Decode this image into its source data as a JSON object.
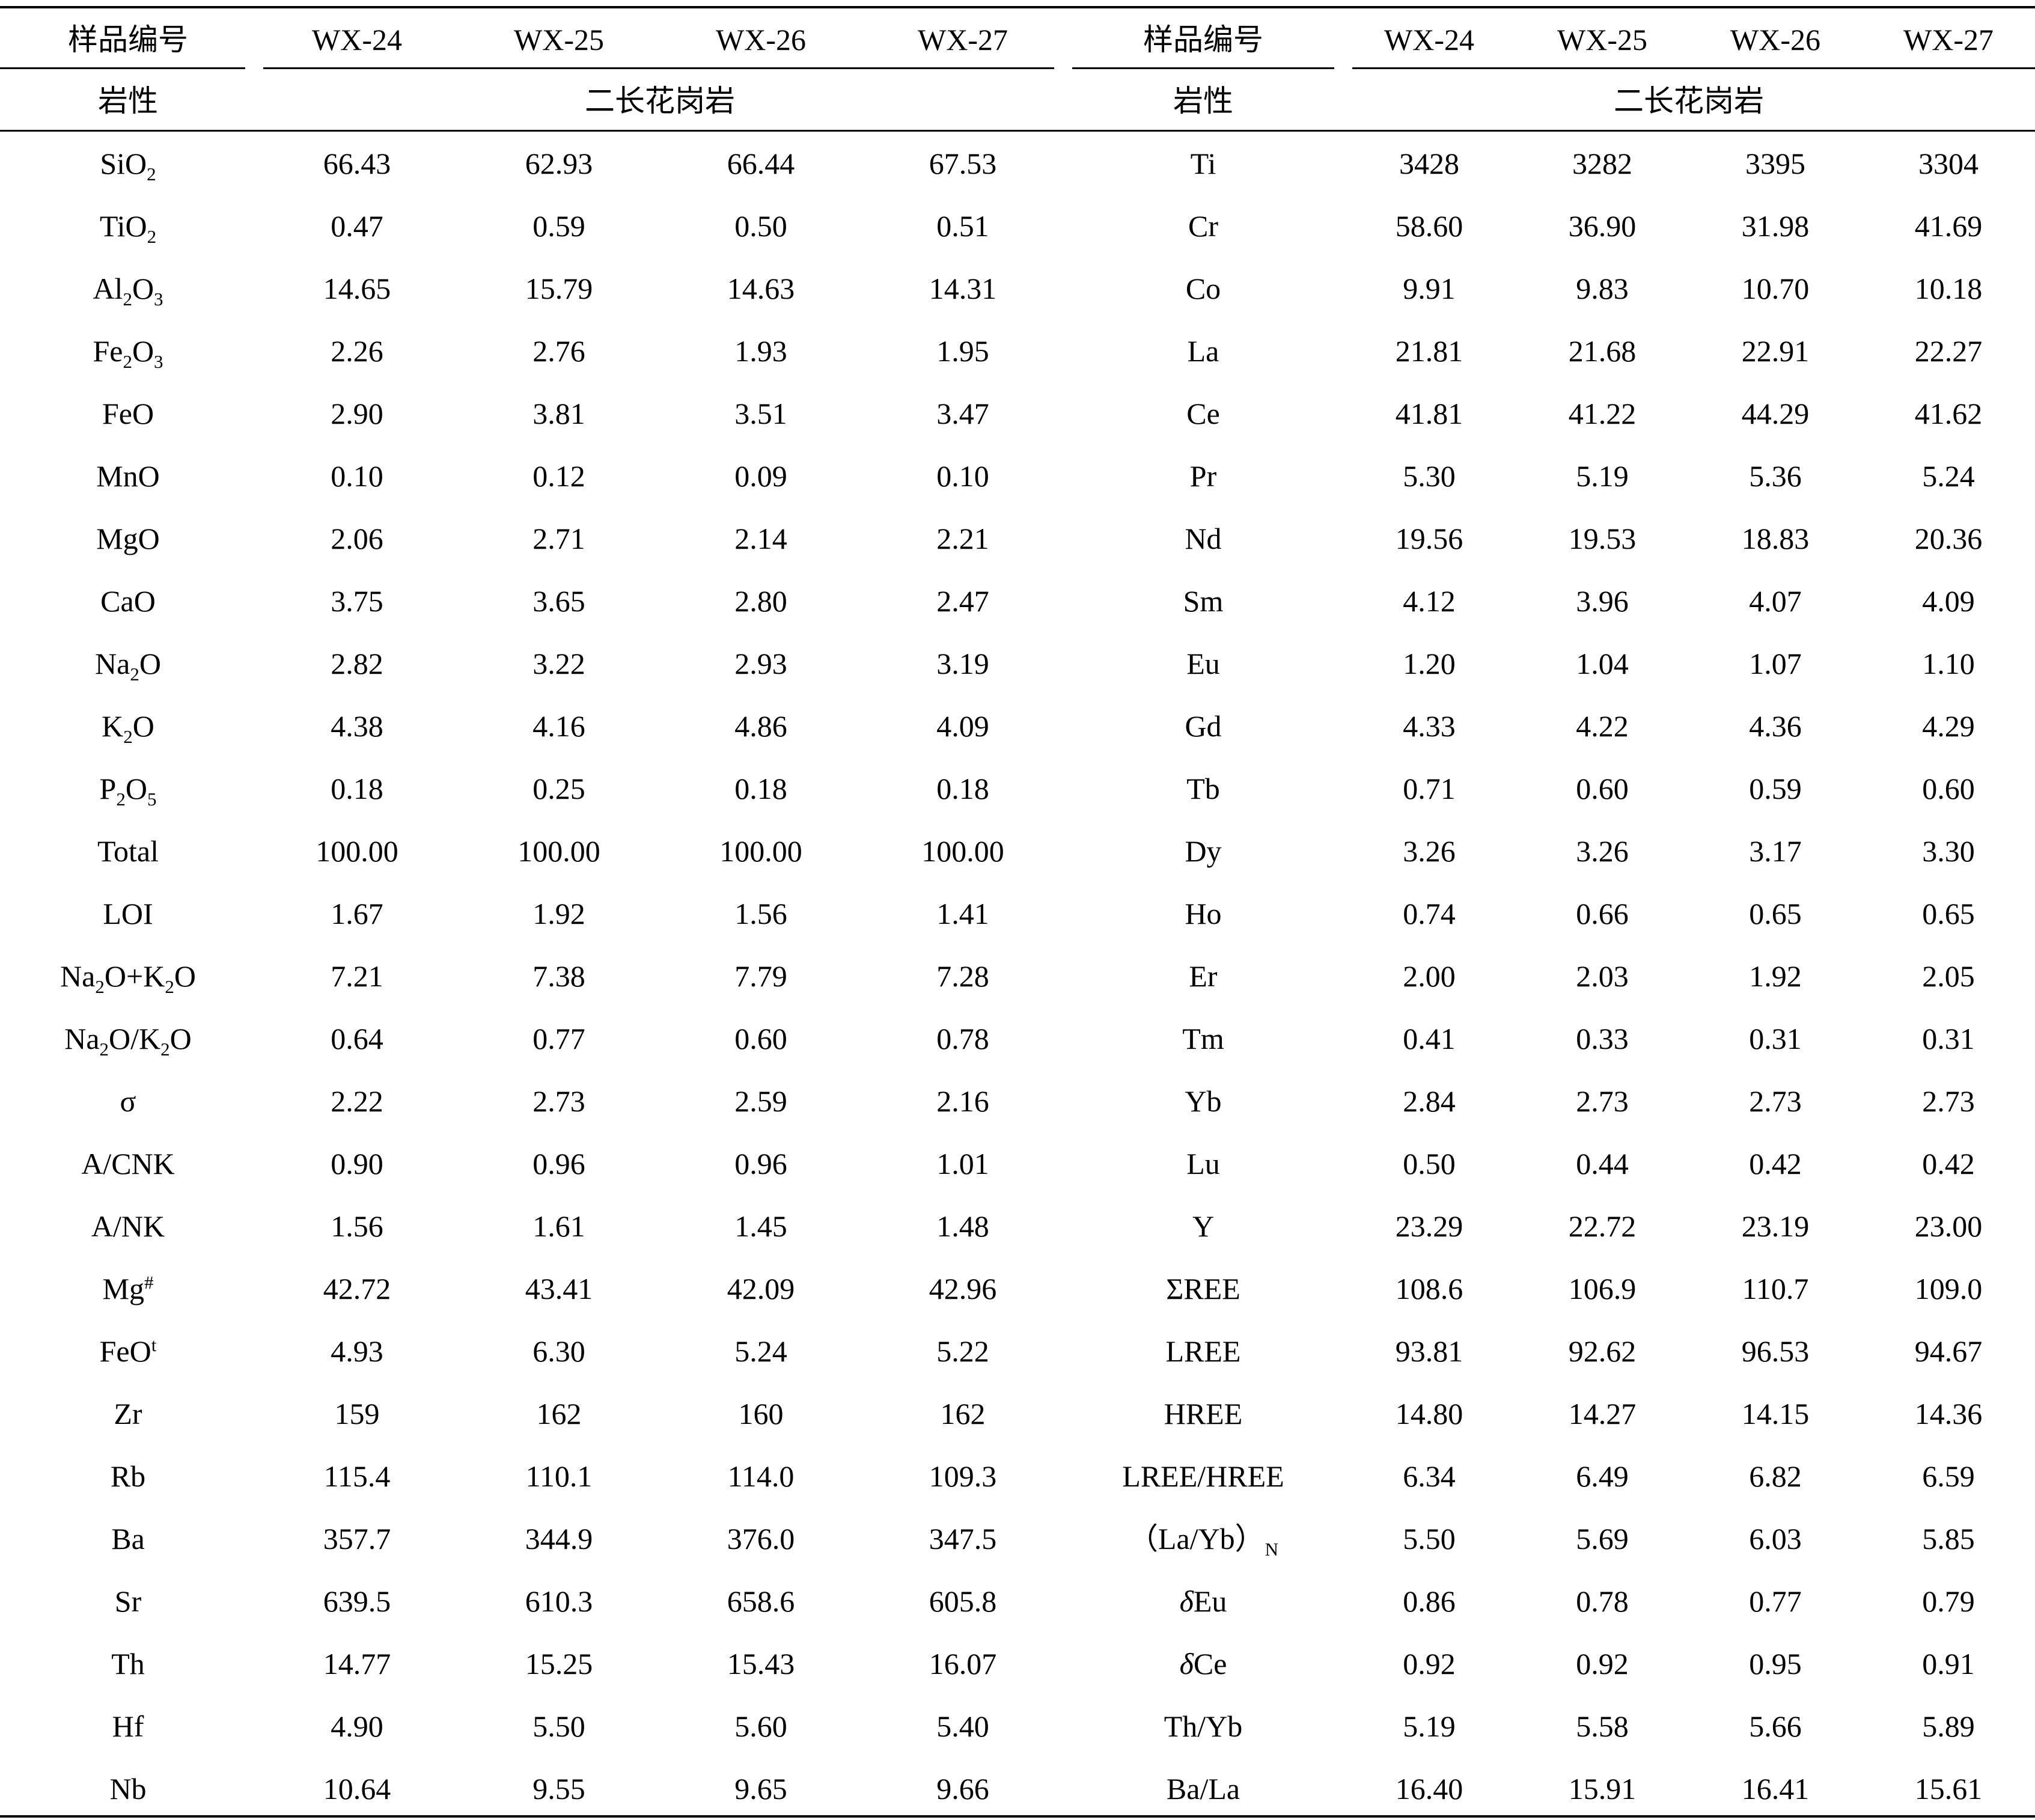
{
  "header": {
    "sample_label": "样品编号",
    "samples": [
      "WX-24",
      "WX-25",
      "WX-26",
      "WX-27"
    ],
    "lithology_label": "岩性",
    "lithology_value": "二长花岗岩"
  },
  "left_rows": [
    {
      "label_html": "SiO<sub>2</sub>",
      "values": [
        "66.43",
        "62.93",
        "66.44",
        "67.53"
      ]
    },
    {
      "label_html": "TiO<sub>2</sub>",
      "values": [
        "0.47",
        "0.59",
        "0.50",
        "0.51"
      ]
    },
    {
      "label_html": "Al<sub>2</sub>O<sub>3</sub>",
      "values": [
        "14.65",
        "15.79",
        "14.63",
        "14.31"
      ]
    },
    {
      "label_html": "Fe<sub>2</sub>O<sub>3</sub>",
      "values": [
        "2.26",
        "2.76",
        "1.93",
        "1.95"
      ]
    },
    {
      "label_html": "FeO",
      "values": [
        "2.90",
        "3.81",
        "3.51",
        "3.47"
      ]
    },
    {
      "label_html": "MnO",
      "values": [
        "0.10",
        "0.12",
        "0.09",
        "0.10"
      ]
    },
    {
      "label_html": "MgO",
      "values": [
        "2.06",
        "2.71",
        "2.14",
        "2.21"
      ]
    },
    {
      "label_html": "CaO",
      "values": [
        "3.75",
        "3.65",
        "2.80",
        "2.47"
      ]
    },
    {
      "label_html": "Na<sub>2</sub>O",
      "values": [
        "2.82",
        "3.22",
        "2.93",
        "3.19"
      ]
    },
    {
      "label_html": "K<sub>2</sub>O",
      "values": [
        "4.38",
        "4.16",
        "4.86",
        "4.09"
      ]
    },
    {
      "label_html": "P<sub>2</sub>O<sub>5</sub>",
      "values": [
        "0.18",
        "0.25",
        "0.18",
        "0.18"
      ]
    },
    {
      "label_html": "Total",
      "values": [
        "100.00",
        "100.00",
        "100.00",
        "100.00"
      ]
    },
    {
      "label_html": "LOI",
      "values": [
        "1.67",
        "1.92",
        "1.56",
        "1.41"
      ]
    },
    {
      "label_html": "Na<sub>2</sub>O+K<sub>2</sub>O",
      "values": [
        "7.21",
        "7.38",
        "7.79",
        "7.28"
      ]
    },
    {
      "label_html": "Na<sub>2</sub>O/K<sub>2</sub>O",
      "values": [
        "0.64",
        "0.77",
        "0.60",
        "0.78"
      ]
    },
    {
      "label_html": "σ",
      "values": [
        "2.22",
        "2.73",
        "2.59",
        "2.16"
      ]
    },
    {
      "label_html": "A/CNK",
      "values": [
        "0.90",
        "0.96",
        "0.96",
        "1.01"
      ]
    },
    {
      "label_html": "A/NK",
      "values": [
        "1.56",
        "1.61",
        "1.45",
        "1.48"
      ]
    },
    {
      "label_html": "Mg<sup>#</sup>",
      "values": [
        "42.72",
        "43.41",
        "42.09",
        "42.96"
      ]
    },
    {
      "label_html": "FeO<sup>t</sup>",
      "values": [
        "4.93",
        "6.30",
        "5.24",
        "5.22"
      ]
    },
    {
      "label_html": "Zr",
      "values": [
        "159",
        "162",
        "160",
        "162"
      ]
    },
    {
      "label_html": "Rb",
      "values": [
        "115.4",
        "110.1",
        "114.0",
        "109.3"
      ]
    },
    {
      "label_html": "Ba",
      "values": [
        "357.7",
        "344.9",
        "376.0",
        "347.5"
      ]
    },
    {
      "label_html": "Sr",
      "values": [
        "639.5",
        "610.3",
        "658.6",
        "605.8"
      ]
    },
    {
      "label_html": "Th",
      "values": [
        "14.77",
        "15.25",
        "15.43",
        "16.07"
      ]
    },
    {
      "label_html": "Hf",
      "values": [
        "4.90",
        "5.50",
        "5.60",
        "5.40"
      ]
    },
    {
      "label_html": "Nb",
      "values": [
        "10.64",
        "9.55",
        "9.65",
        "9.66"
      ]
    }
  ],
  "right_rows": [
    {
      "label_html": "Ti",
      "values": [
        "3428",
        "3282",
        "3395",
        "3304"
      ]
    },
    {
      "label_html": "Cr",
      "values": [
        "58.60",
        "36.90",
        "31.98",
        "41.69"
      ]
    },
    {
      "label_html": "Co",
      "values": [
        "9.91",
        "9.83",
        "10.70",
        "10.18"
      ]
    },
    {
      "label_html": "La",
      "values": [
        "21.81",
        "21.68",
        "22.91",
        "22.27"
      ]
    },
    {
      "label_html": "Ce",
      "values": [
        "41.81",
        "41.22",
        "44.29",
        "41.62"
      ]
    },
    {
      "label_html": "Pr",
      "values": [
        "5.30",
        "5.19",
        "5.36",
        "5.24"
      ]
    },
    {
      "label_html": "Nd",
      "values": [
        "19.56",
        "19.53",
        "18.83",
        "20.36"
      ]
    },
    {
      "label_html": "Sm",
      "values": [
        "4.12",
        "3.96",
        "4.07",
        "4.09"
      ]
    },
    {
      "label_html": "Eu",
      "values": [
        "1.20",
        "1.04",
        "1.07",
        "1.10"
      ]
    },
    {
      "label_html": "Gd",
      "values": [
        "4.33",
        "4.22",
        "4.36",
        "4.29"
      ]
    },
    {
      "label_html": "Tb",
      "values": [
        "0.71",
        "0.60",
        "0.59",
        "0.60"
      ]
    },
    {
      "label_html": "Dy",
      "values": [
        "3.26",
        "3.26",
        "3.17",
        "3.30"
      ]
    },
    {
      "label_html": "Ho",
      "values": [
        "0.74",
        "0.66",
        "0.65",
        "0.65"
      ]
    },
    {
      "label_html": "Er",
      "values": [
        "2.00",
        "2.03",
        "1.92",
        "2.05"
      ]
    },
    {
      "label_html": "Tm",
      "values": [
        "0.41",
        "0.33",
        "0.31",
        "0.31"
      ]
    },
    {
      "label_html": "Yb",
      "values": [
        "2.84",
        "2.73",
        "2.73",
        "2.73"
      ]
    },
    {
      "label_html": "Lu",
      "values": [
        "0.50",
        "0.44",
        "0.42",
        "0.42"
      ]
    },
    {
      "label_html": "Y",
      "values": [
        "23.29",
        "22.72",
        "23.19",
        "23.00"
      ]
    },
    {
      "label_html": "ΣREE",
      "values": [
        "108.6",
        "106.9",
        "110.7",
        "109.0"
      ]
    },
    {
      "label_html": "LREE",
      "values": [
        "93.81",
        "92.62",
        "96.53",
        "94.67"
      ]
    },
    {
      "label_html": "HREE",
      "values": [
        "14.80",
        "14.27",
        "14.15",
        "14.36"
      ]
    },
    {
      "label_html": "LREE/HREE",
      "values": [
        "6.34",
        "6.49",
        "6.82",
        "6.59"
      ]
    },
    {
      "label_html": "（La/Yb）<sub>N</sub>",
      "values": [
        "5.50",
        "5.69",
        "6.03",
        "5.85"
      ]
    },
    {
      "label_html": "<i>δ</i>Eu",
      "values": [
        "0.86",
        "0.78",
        "0.77",
        "0.79"
      ]
    },
    {
      "label_html": "<i>δ</i>Ce",
      "values": [
        "0.92",
        "0.92",
        "0.95",
        "0.91"
      ]
    },
    {
      "label_html": "Th/Yb",
      "values": [
        "5.19",
        "5.58",
        "5.66",
        "5.89"
      ]
    },
    {
      "label_html": "Ba/La",
      "values": [
        "16.40",
        "15.91",
        "16.41",
        "15.61"
      ]
    }
  ]
}
